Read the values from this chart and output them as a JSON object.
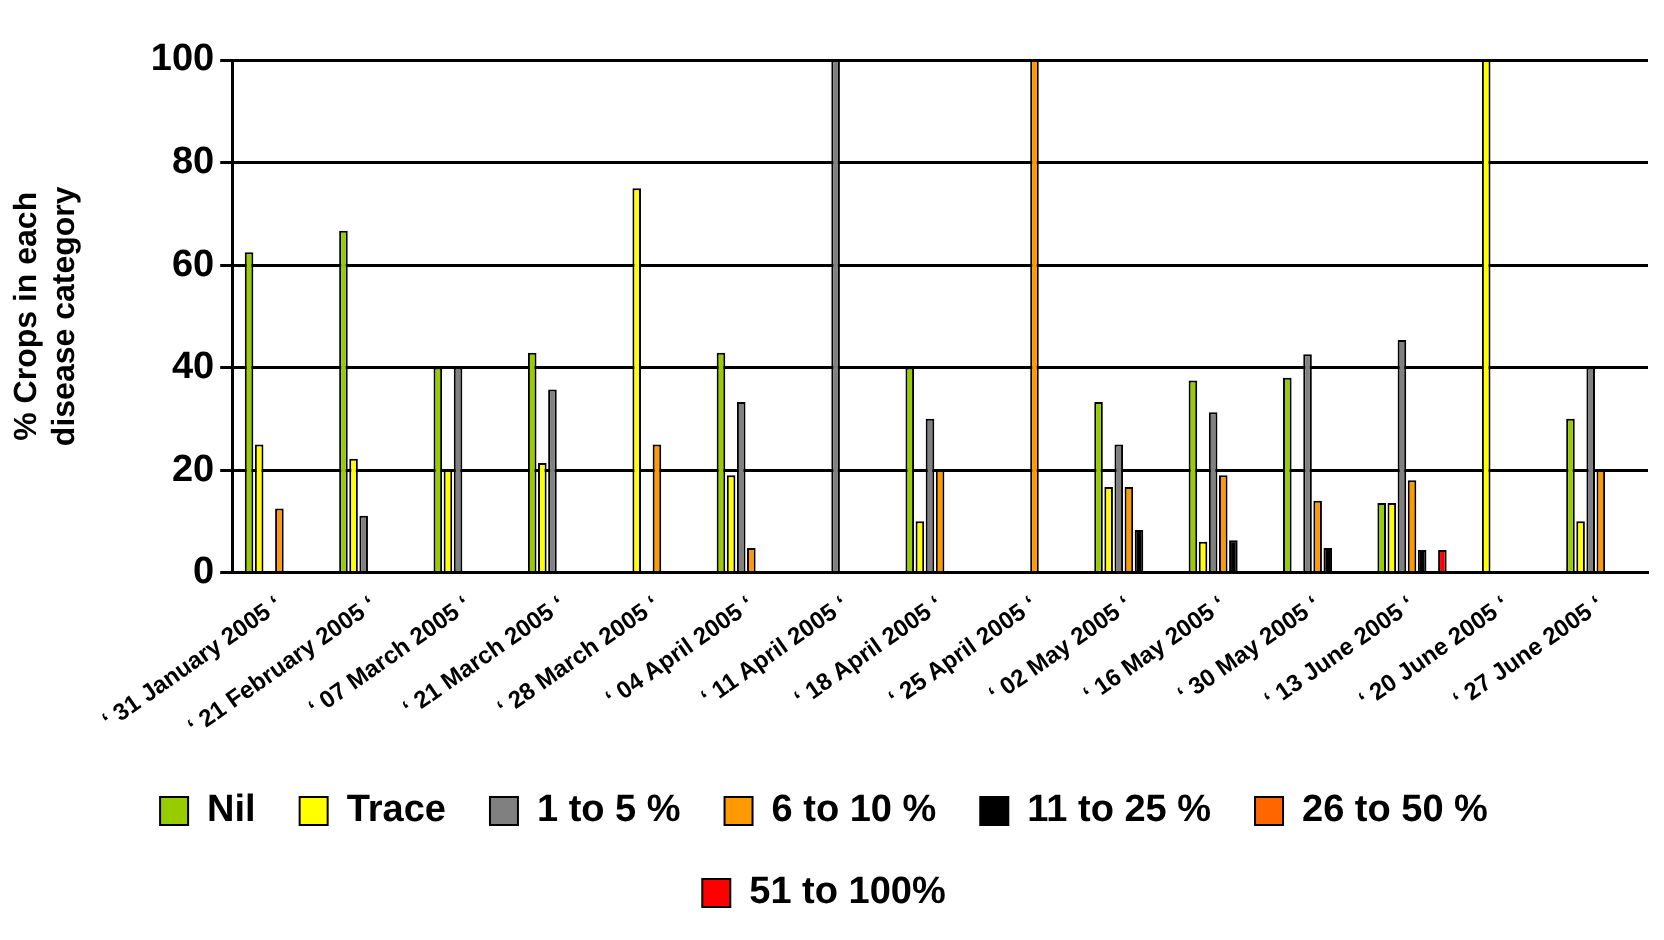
{
  "chart_data": {
    "type": "bar",
    "ylabel": "% Crops in each disease category",
    "categories": [
      "‘ 31 January 2005 ‘",
      "‘ 21 February 2005 ‘",
      "‘ 07 March 2005 ‘",
      "‘ 21 March 2005 ‘",
      "‘ 28 March 2005 ‘",
      "‘ 04 April 2005 ‘",
      "‘ 11 April 2005 ‘",
      "‘ 18 April 2005 ‘",
      "‘ 25 April 2005 ‘",
      "‘ 02 May 2005 ‘",
      "‘ 16 May 2005 ‘",
      "‘ 30 May 2005 ‘",
      "‘ 13 June 2005 ‘",
      "‘ 20 June 2005 ‘",
      "‘ 27 June 2005 ‘"
    ],
    "series": [
      {
        "name": "Nil",
        "color": "#99cc00",
        "values": [
          62.5,
          66.7,
          40,
          42.9,
          null,
          42.9,
          null,
          40,
          null,
          33.3,
          37.5,
          38,
          13.6,
          null,
          30
        ]
      },
      {
        "name": "Trace",
        "color": "#ffff00",
        "values": [
          25,
          22.2,
          20,
          21.4,
          75,
          19,
          null,
          10,
          null,
          16.7,
          6,
          null,
          13.6,
          100,
          10
        ]
      },
      {
        "name": "1 to 5 %",
        "color": "#808080",
        "values": [
          null,
          11.1,
          40,
          35.7,
          null,
          33.3,
          100,
          30,
          null,
          25,
          31.3,
          42.6,
          45.4,
          null,
          40
        ]
      },
      {
        "name": "6 to 10 %",
        "color": "#ff9900",
        "values": [
          12.5,
          null,
          null,
          null,
          25,
          4.8,
          null,
          20,
          100,
          16.7,
          19,
          14,
          18,
          null,
          20
        ]
      },
      {
        "name": "11 to 25 %",
        "color": "#000000",
        "values": [
          null,
          null,
          null,
          null,
          null,
          null,
          null,
          null,
          null,
          8.3,
          6.3,
          4.8,
          4.4,
          null,
          null
        ]
      },
      {
        "name": "26 to 50 %",
        "color": "#ff6600",
        "values": [
          null,
          null,
          null,
          null,
          null,
          null,
          null,
          null,
          null,
          null,
          null,
          null,
          null,
          null,
          null
        ]
      },
      {
        "name": "51 to 100%",
        "color": "#ff0000",
        "values": [
          null,
          null,
          null,
          null,
          null,
          null,
          null,
          null,
          null,
          null,
          null,
          null,
          4.4,
          null,
          null
        ]
      }
    ],
    "ylim": [
      0,
      100
    ],
    "yticks": [
      0,
      20,
      40,
      60,
      80,
      100
    ],
    "grid": "y",
    "legend": "bottom"
  }
}
